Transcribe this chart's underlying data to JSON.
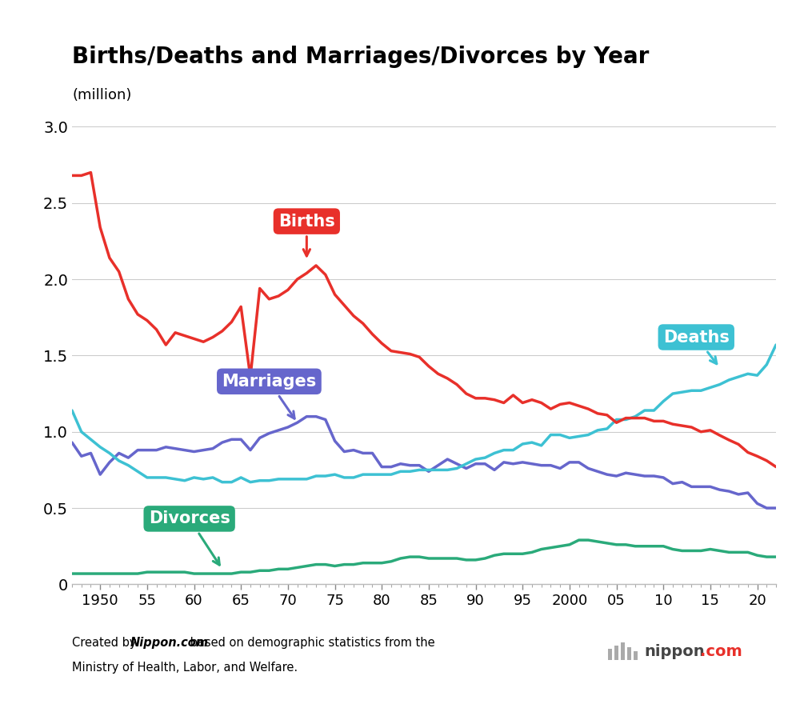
{
  "title": "Births/Deaths and Marriages/Divorces by Year",
  "ylabel": "(million)",
  "xlim": [
    1947,
    2022
  ],
  "ylim": [
    0,
    3.0
  ],
  "yticks": [
    0,
    0.5,
    1.0,
    1.5,
    2.0,
    2.5,
    3.0
  ],
  "xticks": [
    1950,
    1955,
    1960,
    1965,
    1970,
    1975,
    1980,
    1985,
    1990,
    1995,
    2000,
    2005,
    2010,
    2015,
    2020
  ],
  "xtick_labels": [
    "1950",
    "55",
    "60",
    "65",
    "70",
    "75",
    "80",
    "85",
    "90",
    "95",
    "2000",
    "05",
    "10",
    "15",
    "20"
  ],
  "births_color": "#e8302a",
  "deaths_color": "#3dc1d3",
  "marriages_color": "#6666cc",
  "divorces_color": "#2aaa7a",
  "births": {
    "years": [
      1947,
      1948,
      1949,
      1950,
      1951,
      1952,
      1953,
      1954,
      1955,
      1956,
      1957,
      1958,
      1959,
      1960,
      1961,
      1962,
      1963,
      1964,
      1965,
      1966,
      1967,
      1968,
      1969,
      1970,
      1971,
      1972,
      1973,
      1974,
      1975,
      1976,
      1977,
      1978,
      1979,
      1980,
      1981,
      1982,
      1983,
      1984,
      1985,
      1986,
      1987,
      1988,
      1989,
      1990,
      1991,
      1992,
      1993,
      1994,
      1995,
      1996,
      1997,
      1998,
      1999,
      2000,
      2001,
      2002,
      2003,
      2004,
      2005,
      2006,
      2007,
      2008,
      2009,
      2010,
      2011,
      2012,
      2013,
      2014,
      2015,
      2016,
      2017,
      2018,
      2019,
      2020,
      2021,
      2022
    ],
    "values": [
      2.68,
      2.68,
      2.7,
      2.34,
      2.14,
      2.05,
      1.87,
      1.77,
      1.73,
      1.67,
      1.57,
      1.65,
      1.63,
      1.61,
      1.59,
      1.62,
      1.66,
      1.72,
      1.82,
      1.36,
      1.94,
      1.87,
      1.89,
      1.93,
      2.0,
      2.04,
      2.09,
      2.03,
      1.9,
      1.83,
      1.76,
      1.71,
      1.64,
      1.58,
      1.53,
      1.52,
      1.51,
      1.49,
      1.43,
      1.38,
      1.35,
      1.31,
      1.25,
      1.22,
      1.22,
      1.21,
      1.19,
      1.24,
      1.19,
      1.21,
      1.19,
      1.15,
      1.18,
      1.19,
      1.17,
      1.15,
      1.12,
      1.11,
      1.06,
      1.09,
      1.09,
      1.09,
      1.07,
      1.07,
      1.05,
      1.04,
      1.03,
      1.0,
      1.01,
      0.977,
      0.946,
      0.918,
      0.865,
      0.84,
      0.811,
      0.77
    ]
  },
  "deaths": {
    "years": [
      1947,
      1948,
      1949,
      1950,
      1951,
      1952,
      1953,
      1954,
      1955,
      1956,
      1957,
      1958,
      1959,
      1960,
      1961,
      1962,
      1963,
      1964,
      1965,
      1966,
      1967,
      1968,
      1969,
      1970,
      1971,
      1972,
      1973,
      1974,
      1975,
      1976,
      1977,
      1978,
      1979,
      1980,
      1981,
      1982,
      1983,
      1984,
      1985,
      1986,
      1987,
      1988,
      1989,
      1990,
      1991,
      1992,
      1993,
      1994,
      1995,
      1996,
      1997,
      1998,
      1999,
      2000,
      2001,
      2002,
      2003,
      2004,
      2005,
      2006,
      2007,
      2008,
      2009,
      2010,
      2011,
      2012,
      2013,
      2014,
      2015,
      2016,
      2017,
      2018,
      2019,
      2020,
      2021,
      2022
    ],
    "values": [
      1.14,
      1.0,
      0.95,
      0.9,
      0.86,
      0.81,
      0.78,
      0.74,
      0.7,
      0.7,
      0.7,
      0.69,
      0.68,
      0.7,
      0.69,
      0.7,
      0.67,
      0.67,
      0.7,
      0.67,
      0.68,
      0.68,
      0.69,
      0.69,
      0.69,
      0.69,
      0.71,
      0.71,
      0.72,
      0.7,
      0.7,
      0.72,
      0.72,
      0.72,
      0.72,
      0.74,
      0.74,
      0.75,
      0.75,
      0.75,
      0.75,
      0.76,
      0.79,
      0.82,
      0.83,
      0.86,
      0.88,
      0.88,
      0.92,
      0.93,
      0.91,
      0.98,
      0.98,
      0.96,
      0.97,
      0.98,
      1.01,
      1.02,
      1.08,
      1.08,
      1.1,
      1.14,
      1.14,
      1.2,
      1.25,
      1.26,
      1.27,
      1.27,
      1.29,
      1.31,
      1.34,
      1.36,
      1.38,
      1.37,
      1.44,
      1.57
    ]
  },
  "marriages": {
    "years": [
      1947,
      1948,
      1949,
      1950,
      1951,
      1952,
      1953,
      1954,
      1955,
      1956,
      1957,
      1958,
      1959,
      1960,
      1961,
      1962,
      1963,
      1964,
      1965,
      1966,
      1967,
      1968,
      1969,
      1970,
      1971,
      1972,
      1973,
      1974,
      1975,
      1976,
      1977,
      1978,
      1979,
      1980,
      1981,
      1982,
      1983,
      1984,
      1985,
      1986,
      1987,
      1988,
      1989,
      1990,
      1991,
      1992,
      1993,
      1994,
      1995,
      1996,
      1997,
      1998,
      1999,
      2000,
      2001,
      2002,
      2003,
      2004,
      2005,
      2006,
      2007,
      2008,
      2009,
      2010,
      2011,
      2012,
      2013,
      2014,
      2015,
      2016,
      2017,
      2018,
      2019,
      2020,
      2021,
      2022
    ],
    "values": [
      0.93,
      0.84,
      0.86,
      0.72,
      0.8,
      0.86,
      0.83,
      0.88,
      0.88,
      0.88,
      0.9,
      0.89,
      0.88,
      0.87,
      0.88,
      0.89,
      0.93,
      0.95,
      0.95,
      0.88,
      0.96,
      0.99,
      1.01,
      1.03,
      1.06,
      1.1,
      1.1,
      1.08,
      0.94,
      0.87,
      0.88,
      0.86,
      0.86,
      0.77,
      0.77,
      0.79,
      0.78,
      0.78,
      0.74,
      0.78,
      0.82,
      0.79,
      0.76,
      0.79,
      0.79,
      0.75,
      0.8,
      0.79,
      0.8,
      0.79,
      0.78,
      0.78,
      0.76,
      0.8,
      0.8,
      0.76,
      0.74,
      0.72,
      0.71,
      0.73,
      0.72,
      0.71,
      0.71,
      0.7,
      0.66,
      0.67,
      0.64,
      0.64,
      0.64,
      0.62,
      0.61,
      0.59,
      0.6,
      0.53,
      0.5,
      0.5
    ]
  },
  "divorces": {
    "years": [
      1947,
      1948,
      1949,
      1950,
      1951,
      1952,
      1953,
      1954,
      1955,
      1956,
      1957,
      1958,
      1959,
      1960,
      1961,
      1962,
      1963,
      1964,
      1965,
      1966,
      1967,
      1968,
      1969,
      1970,
      1971,
      1972,
      1973,
      1974,
      1975,
      1976,
      1977,
      1978,
      1979,
      1980,
      1981,
      1982,
      1983,
      1984,
      1985,
      1986,
      1987,
      1988,
      1989,
      1990,
      1991,
      1992,
      1993,
      1994,
      1995,
      1996,
      1997,
      1998,
      1999,
      2000,
      2001,
      2002,
      2003,
      2004,
      2005,
      2006,
      2007,
      2008,
      2009,
      2010,
      2011,
      2012,
      2013,
      2014,
      2015,
      2016,
      2017,
      2018,
      2019,
      2020,
      2021,
      2022
    ],
    "values": [
      0.07,
      0.07,
      0.07,
      0.07,
      0.07,
      0.07,
      0.07,
      0.07,
      0.08,
      0.08,
      0.08,
      0.08,
      0.08,
      0.07,
      0.07,
      0.07,
      0.07,
      0.07,
      0.08,
      0.08,
      0.09,
      0.09,
      0.1,
      0.1,
      0.11,
      0.12,
      0.13,
      0.13,
      0.12,
      0.13,
      0.13,
      0.14,
      0.14,
      0.14,
      0.15,
      0.17,
      0.18,
      0.18,
      0.17,
      0.17,
      0.17,
      0.17,
      0.16,
      0.16,
      0.17,
      0.19,
      0.2,
      0.2,
      0.2,
      0.21,
      0.23,
      0.24,
      0.25,
      0.26,
      0.29,
      0.29,
      0.28,
      0.27,
      0.26,
      0.26,
      0.25,
      0.25,
      0.25,
      0.25,
      0.23,
      0.22,
      0.22,
      0.22,
      0.23,
      0.22,
      0.21,
      0.21,
      0.21,
      0.19,
      0.18,
      0.18
    ]
  }
}
